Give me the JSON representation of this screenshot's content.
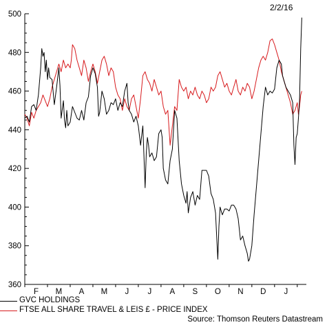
{
  "chart_data": {
    "type": "line",
    "date": "2/2/16",
    "source": "Source: Thomson Reuters Datastream",
    "ylim": [
      360,
      500
    ],
    "yticks": [
      360,
      380,
      400,
      420,
      440,
      460,
      480,
      500
    ],
    "month_labels": [
      "F",
      "M",
      "A",
      "M",
      "J",
      "J",
      "A",
      "S",
      "O",
      "N",
      "D",
      "J"
    ],
    "x_range": [
      0,
      12.4
    ],
    "series": [
      {
        "name": "GVC HOLDINGS",
        "color": "#000000",
        "points": [
          [
            0,
            446
          ],
          [
            0.1,
            447
          ],
          [
            0.2,
            444
          ],
          [
            0.3,
            452
          ],
          [
            0.4,
            453
          ],
          [
            0.5,
            450
          ],
          [
            0.6,
            458
          ],
          [
            0.7,
            472
          ],
          [
            0.75,
            482
          ],
          [
            0.8,
            478
          ],
          [
            0.85,
            480
          ],
          [
            0.9,
            470
          ],
          [
            0.95,
            476
          ],
          [
            1.0,
            466
          ],
          [
            1.05,
            472
          ],
          [
            1.1,
            467
          ],
          [
            1.2,
            466
          ],
          [
            1.3,
            453
          ],
          [
            1.4,
            462
          ],
          [
            1.5,
            472
          ],
          [
            1.55,
            463
          ],
          [
            1.6,
            446
          ],
          [
            1.7,
            455
          ],
          [
            1.75,
            445
          ],
          [
            1.8,
            441
          ],
          [
            1.85,
            450
          ],
          [
            1.9,
            442
          ],
          [
            2.0,
            444
          ],
          [
            2.05,
            448
          ],
          [
            2.1,
            452
          ],
          [
            2.2,
            449
          ],
          [
            2.3,
            446
          ],
          [
            2.4,
            445
          ],
          [
            2.5,
            450
          ],
          [
            2.6,
            445
          ],
          [
            2.7,
            454
          ],
          [
            2.8,
            457
          ],
          [
            2.9,
            468
          ],
          [
            3.0,
            472
          ],
          [
            3.1,
            469
          ],
          [
            3.2,
            462
          ],
          [
            3.25,
            447
          ],
          [
            3.3,
            449
          ],
          [
            3.4,
            460
          ],
          [
            3.5,
            456
          ],
          [
            3.6,
            448
          ],
          [
            3.7,
            450
          ],
          [
            3.8,
            454
          ],
          [
            3.9,
            453
          ],
          [
            4.0,
            456
          ],
          [
            4.1,
            450
          ],
          [
            4.2,
            454
          ],
          [
            4.3,
            452
          ],
          [
            4.4,
            460
          ],
          [
            4.5,
            464
          ],
          [
            4.55,
            454
          ],
          [
            4.6,
            450
          ],
          [
            4.7,
            448
          ],
          [
            4.8,
            444
          ],
          [
            4.9,
            447
          ],
          [
            5.0,
            442
          ],
          [
            5.1,
            432
          ],
          [
            5.2,
            442
          ],
          [
            5.3,
            410
          ],
          [
            5.35,
            428
          ],
          [
            5.4,
            436
          ],
          [
            5.45,
            432
          ],
          [
            5.5,
            426
          ],
          [
            5.6,
            428
          ],
          [
            5.7,
            424
          ],
          [
            5.8,
            426
          ],
          [
            5.9,
            438
          ],
          [
            6.0,
            440
          ],
          [
            6.05,
            436
          ],
          [
            6.1,
            420
          ],
          [
            6.2,
            414
          ],
          [
            6.3,
            412
          ],
          [
            6.35,
            418
          ],
          [
            6.4,
            424
          ],
          [
            6.5,
            430
          ],
          [
            6.6,
            450
          ],
          [
            6.7,
            446
          ],
          [
            6.8,
            424
          ],
          [
            6.9,
            412
          ],
          [
            7.0,
            406
          ],
          [
            7.1,
            402
          ],
          [
            7.15,
            408
          ],
          [
            7.2,
            397
          ],
          [
            7.3,
            405
          ],
          [
            7.4,
            408
          ],
          [
            7.5,
            401
          ],
          [
            7.6,
            406
          ],
          [
            7.7,
            404
          ],
          [
            7.8,
            419
          ],
          [
            7.9,
            419
          ],
          [
            8.0,
            419
          ],
          [
            8.1,
            416
          ],
          [
            8.2,
            407
          ],
          [
            8.3,
            404
          ],
          [
            8.4,
            397
          ],
          [
            8.45,
            385
          ],
          [
            8.5,
            373
          ],
          [
            8.55,
            390
          ],
          [
            8.6,
            400
          ],
          [
            8.65,
            398
          ],
          [
            8.7,
            396
          ],
          [
            8.8,
            399
          ],
          [
            8.9,
            399
          ],
          [
            9.0,
            398
          ],
          [
            9.1,
            401
          ],
          [
            9.2,
            401
          ],
          [
            9.3,
            399
          ],
          [
            9.4,
            394
          ],
          [
            9.5,
            383
          ],
          [
            9.6,
            385
          ],
          [
            9.7,
            380
          ],
          [
            9.8,
            376
          ],
          [
            9.85,
            372
          ],
          [
            9.9,
            373
          ],
          [
            10.0,
            380
          ],
          [
            10.1,
            396
          ],
          [
            10.2,
            410
          ],
          [
            10.3,
            424
          ],
          [
            10.4,
            438
          ],
          [
            10.5,
            452
          ],
          [
            10.6,
            462
          ],
          [
            10.7,
            458
          ],
          [
            10.8,
            460
          ],
          [
            10.9,
            459
          ],
          [
            11.0,
            461
          ],
          [
            11.1,
            472
          ],
          [
            11.2,
            476
          ],
          [
            11.3,
            474
          ],
          [
            11.35,
            468
          ],
          [
            11.4,
            466
          ],
          [
            11.5,
            462
          ],
          [
            11.6,
            460
          ],
          [
            11.7,
            458
          ],
          [
            11.8,
            454
          ],
          [
            11.85,
            432
          ],
          [
            11.9,
            422
          ],
          [
            11.95,
            436
          ],
          [
            12.0,
            438
          ],
          [
            12.05,
            446
          ],
          [
            12.1,
            455
          ],
          [
            12.15,
            482
          ],
          [
            12.2,
            498
          ]
        ]
      },
      {
        "name": "FTSE ALL SHARE TRAVEL & LEIS £ - PRICE INDEX",
        "color": "#d7191c",
        "points": [
          [
            0,
            448
          ],
          [
            0.1,
            446
          ],
          [
            0.2,
            442
          ],
          [
            0.3,
            449
          ],
          [
            0.4,
            446
          ],
          [
            0.5,
            450
          ],
          [
            0.6,
            452
          ],
          [
            0.7,
            454
          ],
          [
            0.8,
            458
          ],
          [
            0.9,
            455
          ],
          [
            1.0,
            452
          ],
          [
            1.1,
            456
          ],
          [
            1.2,
            462
          ],
          [
            1.3,
            466
          ],
          [
            1.4,
            470
          ],
          [
            1.5,
            474
          ],
          [
            1.6,
            470
          ],
          [
            1.7,
            476
          ],
          [
            1.8,
            472
          ],
          [
            1.9,
            474
          ],
          [
            2.0,
            472
          ],
          [
            2.05,
            476
          ],
          [
            2.1,
            484
          ],
          [
            2.2,
            482
          ],
          [
            2.3,
            476
          ],
          [
            2.4,
            472
          ],
          [
            2.5,
            468
          ],
          [
            2.6,
            476
          ],
          [
            2.7,
            472
          ],
          [
            2.8,
            465
          ],
          [
            2.9,
            470
          ],
          [
            3.0,
            474
          ],
          [
            3.1,
            470
          ],
          [
            3.2,
            464
          ],
          [
            3.3,
            470
          ],
          [
            3.4,
            476
          ],
          [
            3.5,
            478
          ],
          [
            3.6,
            474
          ],
          [
            3.7,
            468
          ],
          [
            3.8,
            472
          ],
          [
            3.9,
            470
          ],
          [
            4.0,
            462
          ],
          [
            4.1,
            458
          ],
          [
            4.2,
            456
          ],
          [
            4.3,
            450
          ],
          [
            4.4,
            456
          ],
          [
            4.5,
            452
          ],
          [
            4.6,
            450
          ],
          [
            4.7,
            456
          ],
          [
            4.8,
            458
          ],
          [
            4.9,
            452
          ],
          [
            5.0,
            446
          ],
          [
            5.1,
            456
          ],
          [
            5.2,
            468
          ],
          [
            5.3,
            470
          ],
          [
            5.4,
            466
          ],
          [
            5.5,
            464
          ],
          [
            5.6,
            460
          ],
          [
            5.7,
            466
          ],
          [
            5.8,
            462
          ],
          [
            5.9,
            458
          ],
          [
            6.0,
            460
          ],
          [
            6.1,
            452
          ],
          [
            6.2,
            448
          ],
          [
            6.3,
            450
          ],
          [
            6.4,
            432
          ],
          [
            6.5,
            442
          ],
          [
            6.6,
            452
          ],
          [
            6.7,
            450
          ],
          [
            6.8,
            466
          ],
          [
            6.9,
            462
          ],
          [
            7.0,
            460
          ],
          [
            7.1,
            462
          ],
          [
            7.2,
            456
          ],
          [
            7.3,
            460
          ],
          [
            7.4,
            458
          ],
          [
            7.5,
            462
          ],
          [
            7.6,
            458
          ],
          [
            7.7,
            456
          ],
          [
            7.8,
            460
          ],
          [
            7.9,
            458
          ],
          [
            8.0,
            454
          ],
          [
            8.1,
            456
          ],
          [
            8.2,
            462
          ],
          [
            8.3,
            460
          ],
          [
            8.4,
            462
          ],
          [
            8.5,
            468
          ],
          [
            8.6,
            470
          ],
          [
            8.7,
            466
          ],
          [
            8.8,
            462
          ],
          [
            8.9,
            464
          ],
          [
            9.0,
            460
          ],
          [
            9.1,
            458
          ],
          [
            9.2,
            462
          ],
          [
            9.3,
            466
          ],
          [
            9.4,
            460
          ],
          [
            9.5,
            458
          ],
          [
            9.6,
            462
          ],
          [
            9.7,
            460
          ],
          [
            9.8,
            464
          ],
          [
            9.9,
            462
          ],
          [
            10.0,
            456
          ],
          [
            10.1,
            460
          ],
          [
            10.2,
            466
          ],
          [
            10.3,
            472
          ],
          [
            10.4,
            476
          ],
          [
            10.5,
            478
          ],
          [
            10.6,
            476
          ],
          [
            10.7,
            480
          ],
          [
            10.8,
            486
          ],
          [
            10.9,
            487
          ],
          [
            11.0,
            484
          ],
          [
            11.1,
            480
          ],
          [
            11.2,
            476
          ],
          [
            11.3,
            470
          ],
          [
            11.4,
            466
          ],
          [
            11.5,
            462
          ],
          [
            11.6,
            458
          ],
          [
            11.7,
            454
          ],
          [
            11.8,
            448
          ],
          [
            11.9,
            450
          ],
          [
            12.0,
            454
          ],
          [
            12.05,
            448
          ],
          [
            12.1,
            452
          ],
          [
            12.15,
            458
          ],
          [
            12.2,
            460
          ]
        ]
      }
    ]
  }
}
